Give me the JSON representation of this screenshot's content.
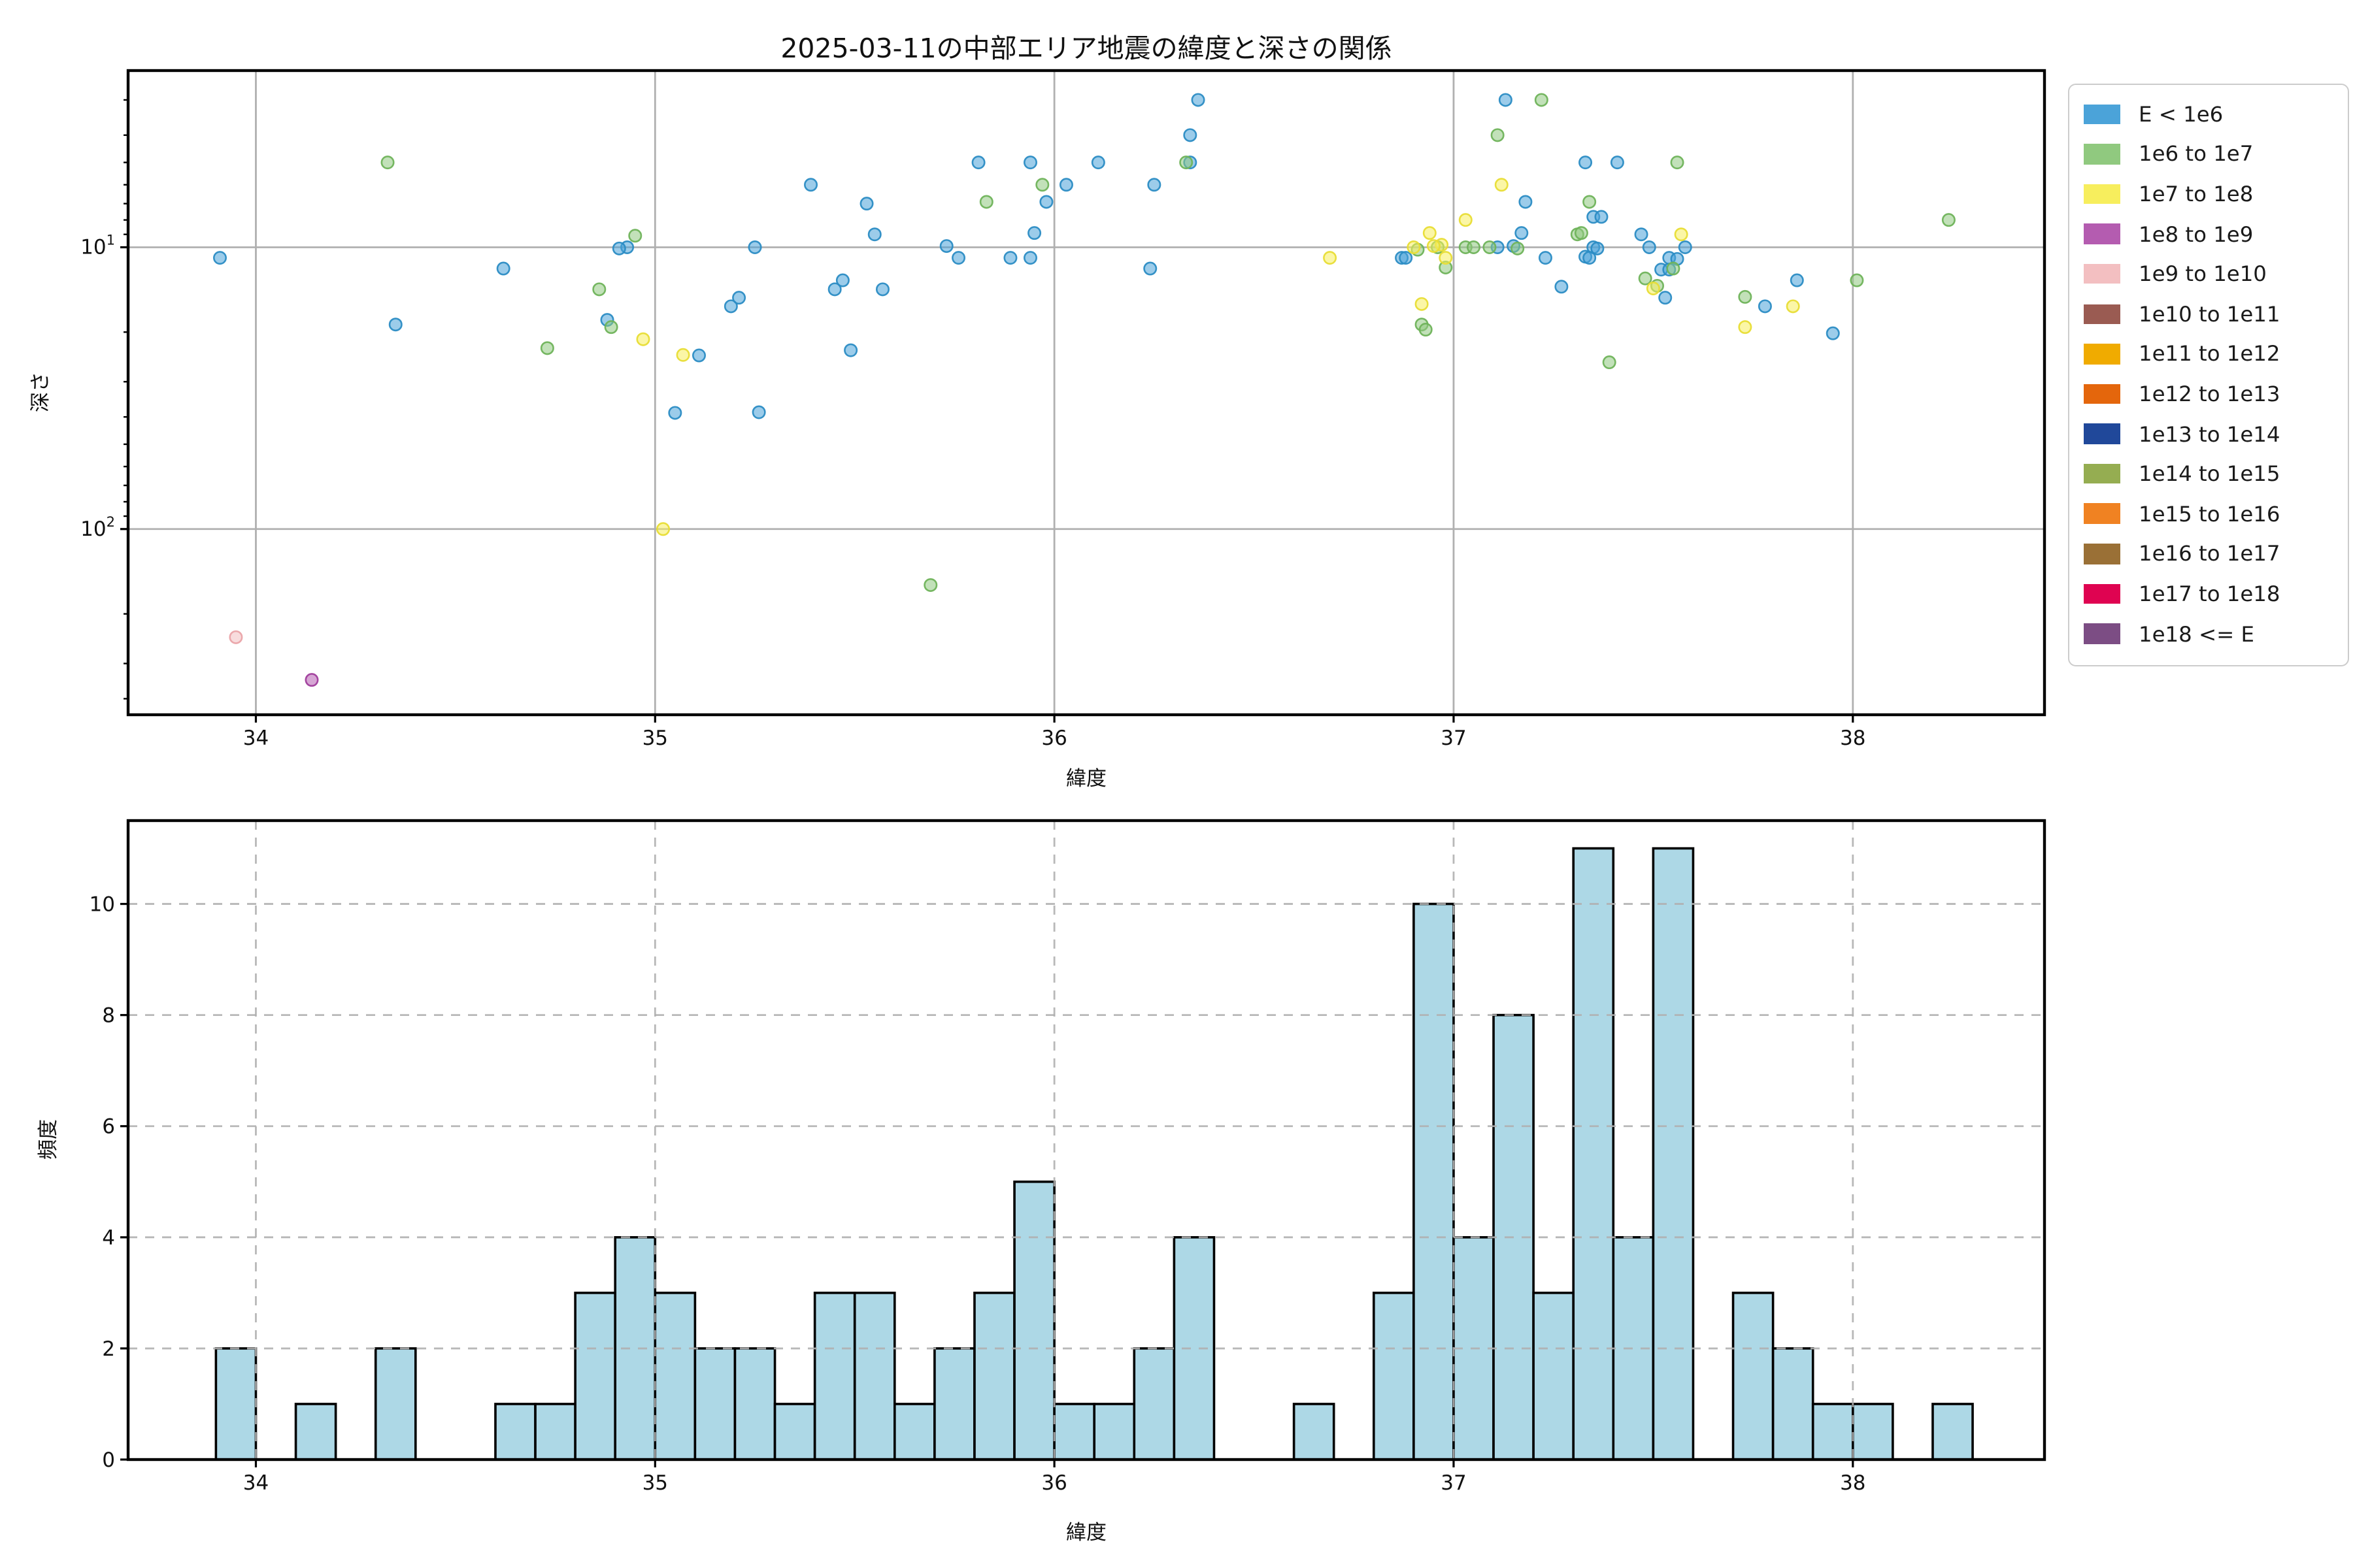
{
  "figure": {
    "title": "2025-03-11の中部エリア地震の緯度と深さの関係"
  },
  "legend": {
    "items": [
      {
        "label": "E < 1e6",
        "color": "#4ba3d9"
      },
      {
        "label": "1e6 to 1e7",
        "color": "#90c97f"
      },
      {
        "label": "1e7 to 1e8",
        "color": "#f7ee5d"
      },
      {
        "label": "1e8 to 1e9",
        "color": "#b45cb0"
      },
      {
        "label": "1e9 to 1e10",
        "color": "#f3bfc1"
      },
      {
        "label": "1e10 to 1e11",
        "color": "#9a5b52"
      },
      {
        "label": "1e11 to 1e12",
        "color": "#f0ab00"
      },
      {
        "label": "1e12 to 1e13",
        "color": "#e4660c"
      },
      {
        "label": "1e13 to 1e14",
        "color": "#20489a"
      },
      {
        "label": "1e14 to 1e15",
        "color": "#95ad51"
      },
      {
        "label": "1e15 to 1e16",
        "color": "#f08222"
      },
      {
        "label": "1e16 to 1e17",
        "color": "#9a7036"
      },
      {
        "label": "1e17 to 1e18",
        "color": "#df0351"
      },
      {
        "label": "1e18 <= E",
        "color": "#7c4d84"
      }
    ]
  },
  "chart_data": [
    {
      "type": "scatter",
      "title": "2025-03-11の中部エリア地震の緯度と深さの関係",
      "xlabel": "緯度",
      "ylabel": "深さ",
      "x_range": [
        33.68,
        38.48
      ],
      "xticks": [
        34,
        35,
        36,
        37,
        38
      ],
      "y_scale": "log-inverted",
      "y_range_top_to_bottom": [
        2.36,
        456
      ],
      "yticks": [
        {
          "text": "10",
          "sup": "1",
          "value": 10
        },
        {
          "text": "10",
          "sup": "2",
          "value": 100
        }
      ],
      "yminor": [
        3,
        4,
        5,
        6,
        7,
        8,
        9,
        20,
        30,
        40,
        50,
        60,
        70,
        80,
        90,
        200,
        300,
        400
      ],
      "grid": "solid",
      "legend_position": "outside-right",
      "series": [
        {
          "name": "E < 1e6",
          "fill": "#4ba3d9",
          "edge": "#2b8cc4",
          "points": [
            [
              33.91,
              10.9
            ],
            [
              34.35,
              18.8
            ],
            [
              34.62,
              11.9
            ],
            [
              34.88,
              18.1
            ],
            [
              34.93,
              10.0
            ],
            [
              34.91,
              10.1
            ],
            [
              35.05,
              38.7
            ],
            [
              35.11,
              24.2
            ],
            [
              35.19,
              16.2
            ],
            [
              35.21,
              15.1
            ],
            [
              35.25,
              10.0
            ],
            [
              35.26,
              38.5
            ],
            [
              35.39,
              6.0
            ],
            [
              35.45,
              14.1
            ],
            [
              35.47,
              13.1
            ],
            [
              35.49,
              23.2
            ],
            [
              35.53,
              7.0
            ],
            [
              35.55,
              9.0
            ],
            [
              35.57,
              14.1
            ],
            [
              35.73,
              9.9
            ],
            [
              35.76,
              10.9
            ],
            [
              35.81,
              5.0
            ],
            [
              35.89,
              10.9
            ],
            [
              35.94,
              5.0
            ],
            [
              35.95,
              8.9
            ],
            [
              35.98,
              6.9
            ],
            [
              35.94,
              10.9
            ],
            [
              36.03,
              6.0
            ],
            [
              36.11,
              5.0
            ],
            [
              36.24,
              11.9
            ],
            [
              36.25,
              6.0
            ],
            [
              36.34,
              5.0
            ],
            [
              36.34,
              4.0
            ],
            [
              36.36,
              3.0
            ],
            [
              36.87,
              10.9
            ],
            [
              36.88,
              10.9
            ],
            [
              37.11,
              10.0
            ],
            [
              37.13,
              3.0
            ],
            [
              37.17,
              8.9
            ],
            [
              37.18,
              6.9
            ],
            [
              37.15,
              9.9
            ],
            [
              37.23,
              10.9
            ],
            [
              37.27,
              13.8
            ],
            [
              37.33,
              10.8
            ],
            [
              37.33,
              5.0
            ],
            [
              37.35,
              10.0
            ],
            [
              37.35,
              7.8
            ],
            [
              37.37,
              7.8
            ],
            [
              37.36,
              10.1
            ],
            [
              37.34,
              10.9
            ],
            [
              37.41,
              5.0
            ],
            [
              37.47,
              9.0
            ],
            [
              37.49,
              10.0
            ],
            [
              37.52,
              12.0
            ],
            [
              37.54,
              12.0
            ],
            [
              37.54,
              10.9
            ],
            [
              37.56,
              11.0
            ],
            [
              37.58,
              10.0
            ],
            [
              37.53,
              15.1
            ],
            [
              37.78,
              16.2
            ],
            [
              37.86,
              13.1
            ],
            [
              37.95,
              20.2
            ]
          ]
        },
        {
          "name": "1e6 to 1e7",
          "fill": "#90c97f",
          "edge": "#6fb35a",
          "points": [
            [
              34.33,
              5.0
            ],
            [
              34.73,
              22.8
            ],
            [
              34.86,
              14.1
            ],
            [
              34.89,
              19.2
            ],
            [
              34.95,
              9.1
            ],
            [
              35.69,
              158
            ],
            [
              35.83,
              6.9
            ],
            [
              35.97,
              6.0
            ],
            [
              36.33,
              5.0
            ],
            [
              36.92,
              18.8
            ],
            [
              36.93,
              19.6
            ],
            [
              36.96,
              10.0
            ],
            [
              36.98,
              11.8
            ],
            [
              36.91,
              10.2
            ],
            [
              37.03,
              10.0
            ],
            [
              37.05,
              10.0
            ],
            [
              37.09,
              10.0
            ],
            [
              37.11,
              4.0
            ],
            [
              37.16,
              10.1
            ],
            [
              37.22,
              3.0
            ],
            [
              37.31,
              9.0
            ],
            [
              37.32,
              8.9
            ],
            [
              37.34,
              6.9
            ],
            [
              37.39,
              25.6
            ],
            [
              37.48,
              12.9
            ],
            [
              37.51,
              13.7
            ],
            [
              37.55,
              11.9
            ],
            [
              37.56,
              5.0
            ],
            [
              37.73,
              15.0
            ],
            [
              38.01,
              13.1
            ],
            [
              38.24,
              8.0
            ]
          ]
        },
        {
          "name": "1e7 to 1e8",
          "fill": "#f7ee5d",
          "edge": "#e8dd35",
          "points": [
            [
              34.97,
              21.2
            ],
            [
              35.02,
              100
            ],
            [
              35.07,
              24.1
            ],
            [
              36.69,
              10.9
            ],
            [
              36.9,
              10.0
            ],
            [
              36.92,
              15.9
            ],
            [
              36.94,
              8.9
            ],
            [
              36.97,
              9.8
            ],
            [
              36.98,
              10.9
            ],
            [
              36.95,
              9.9
            ],
            [
              37.03,
              8.0
            ],
            [
              37.12,
              6.0
            ],
            [
              37.5,
              14.0
            ],
            [
              37.57,
              9.0
            ],
            [
              37.73,
              19.2
            ],
            [
              37.85,
              16.2
            ]
          ]
        },
        {
          "name": "1e8 to 1e9",
          "fill": "#b45cb0",
          "edge": "#a03d9c",
          "points": [
            [
              34.14,
              343
            ]
          ]
        },
        {
          "name": "1e9 to 1e10",
          "fill": "#f3bfc1",
          "edge": "#eaa3a8",
          "points": [
            [
              33.95,
              242
            ]
          ]
        }
      ]
    },
    {
      "type": "bar",
      "xlabel": "緯度",
      "ylabel": "頻度",
      "x_range": [
        33.68,
        38.48
      ],
      "xticks": [
        34,
        35,
        36,
        37,
        38
      ],
      "y_range": [
        0,
        11.5
      ],
      "yticks": [
        0,
        2,
        4,
        6,
        8,
        10
      ],
      "grid": "dashed",
      "bar_fill": "#add8e6",
      "bar_edge": "#000000",
      "bin_width": 0.1,
      "bars": [
        {
          "left": 33.9,
          "count": 2
        },
        {
          "left": 34.1,
          "count": 1
        },
        {
          "left": 34.3,
          "count": 2
        },
        {
          "left": 34.6,
          "count": 1
        },
        {
          "left": 34.7,
          "count": 1
        },
        {
          "left": 34.8,
          "count": 3
        },
        {
          "left": 34.9,
          "count": 4
        },
        {
          "left": 35.0,
          "count": 3
        },
        {
          "left": 35.1,
          "count": 2
        },
        {
          "left": 35.2,
          "count": 2
        },
        {
          "left": 35.3,
          "count": 1
        },
        {
          "left": 35.4,
          "count": 3
        },
        {
          "left": 35.5,
          "count": 3
        },
        {
          "left": 35.6,
          "count": 1
        },
        {
          "left": 35.7,
          "count": 2
        },
        {
          "left": 35.8,
          "count": 3
        },
        {
          "left": 35.9,
          "count": 5
        },
        {
          "left": 36.0,
          "count": 1
        },
        {
          "left": 36.1,
          "count": 1
        },
        {
          "left": 36.2,
          "count": 2
        },
        {
          "left": 36.3,
          "count": 4
        },
        {
          "left": 36.6,
          "count": 1
        },
        {
          "left": 36.8,
          "count": 3
        },
        {
          "left": 36.9,
          "count": 10
        },
        {
          "left": 37.0,
          "count": 4
        },
        {
          "left": 37.1,
          "count": 8
        },
        {
          "left": 37.2,
          "count": 3
        },
        {
          "left": 37.3,
          "count": 11
        },
        {
          "left": 37.4,
          "count": 4
        },
        {
          "left": 37.5,
          "count": 11
        },
        {
          "left": 37.7,
          "count": 3
        },
        {
          "left": 37.8,
          "count": 2
        },
        {
          "left": 37.9,
          "count": 1
        },
        {
          "left": 38.0,
          "count": 1
        },
        {
          "left": 38.2,
          "count": 1
        }
      ]
    }
  ]
}
